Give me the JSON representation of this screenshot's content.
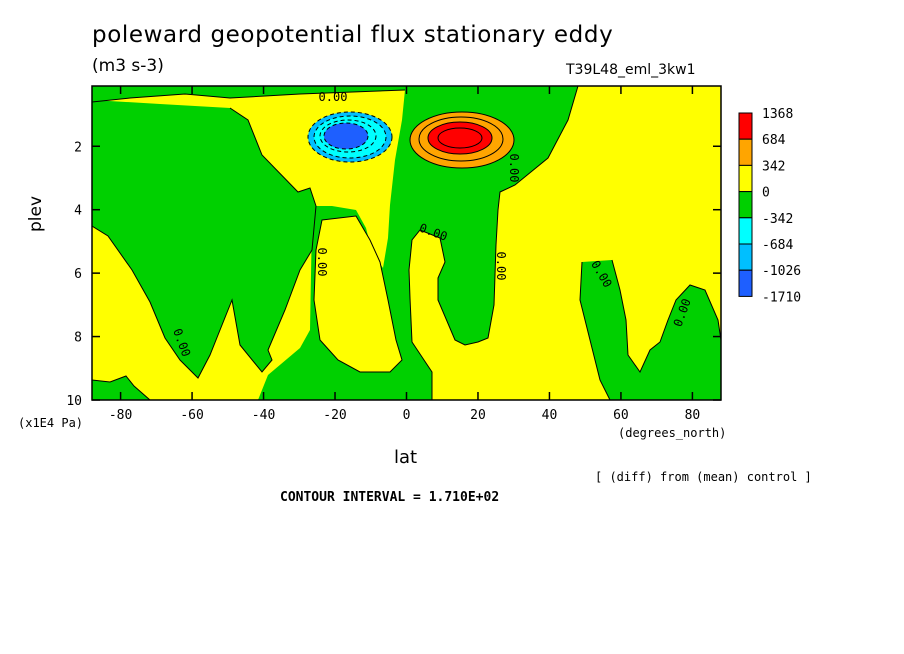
{
  "title": "poleward geopotential flux stationary eddy",
  "units": "(m3 s-3)",
  "run_label": "T39L48_eml_3kw1",
  "y_axis_unit": "(x1E4 Pa)",
  "x_axis_unit": "(degrees_north)",
  "subtitle_right": "[ (diff) from (mean) control ]",
  "contour_interval": "CONTOUR INTERVAL = 1.710E+02",
  "colors": {
    "red": "#ff0000",
    "orange": "#ffa500",
    "yellow": "#ffff00",
    "green": "#00d000",
    "cyan": "#00ffff",
    "lightblue": "#00bfff",
    "blue": "#1e5fff"
  },
  "chart_data": {
    "type": "heatmap",
    "subtype": "filled-contour",
    "xlabel": "lat",
    "ylabel": "plev",
    "xlim": [
      -88,
      88
    ],
    "ylim": [
      10,
      0.1
    ],
    "x_ticks": [
      -80,
      -60,
      -40,
      -20,
      0,
      20,
      40,
      60,
      80
    ],
    "y_ticks": [
      2,
      4,
      6,
      8,
      10
    ],
    "contour_labels": [
      "0.00",
      "0.00",
      "0.00",
      "0.00",
      "0.00",
      "0.00",
      "0.00",
      "0.00"
    ],
    "legend": {
      "placement": "right",
      "levels": [
        "1368",
        "684",
        "342",
        "0",
        "-342",
        "-684",
        "-1026",
        "-1710"
      ],
      "colors": [
        "#ff0000",
        "#ffa500",
        "#ffff00",
        "#00d000",
        "#00ffff",
        "#00bfff",
        "#1e5fff"
      ]
    },
    "extrema": [
      {
        "kind": "minimum",
        "lat": -17,
        "plev": 1.7,
        "approx_value": -1710
      },
      {
        "kind": "maximum",
        "lat": 15,
        "plev": 1.7,
        "approx_value": 1368
      }
    ]
  }
}
